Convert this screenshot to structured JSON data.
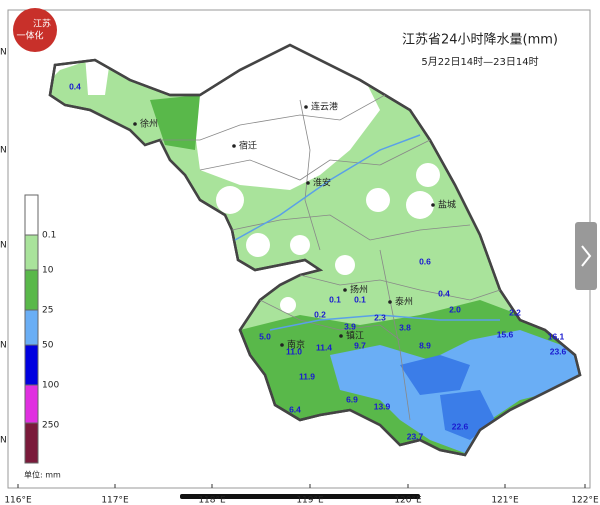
{
  "logo": {
    "line1": "江苏",
    "line2": "一体化"
  },
  "header": {
    "title": "江苏省24小时降水量(mm)",
    "subtitle": "5月22日14时—23日14时"
  },
  "legend": {
    "labels": [
      "0.1",
      "10",
      "25",
      "50",
      "100",
      "250"
    ],
    "unit": "单位: mm"
  },
  "axis": {
    "longitudes": [
      "116°E",
      "117°E",
      "118°E",
      "119°E",
      "120°E",
      "121°E",
      "122°E"
    ],
    "latitude_marks": [
      "N",
      "N",
      "N",
      "N",
      "N"
    ]
  },
  "cities": [
    "徐州",
    "连云港",
    "宿迁",
    "淮安",
    "盐城",
    "扬州",
    "泰州",
    "镇江",
    "南京"
  ],
  "rain_labels": [
    "0.4",
    "0.6",
    "0.4",
    "2.0",
    "2.2",
    "0.2",
    "0.1",
    "0.1",
    "2.3",
    "3.9",
    "3.8",
    "5.0",
    "11.0",
    "11.4",
    "9.7",
    "8.9",
    "11.9",
    "6.9",
    "6.4",
    "13.9",
    "22.6",
    "23.7",
    "15.6",
    "16.1",
    "23.6"
  ]
}
